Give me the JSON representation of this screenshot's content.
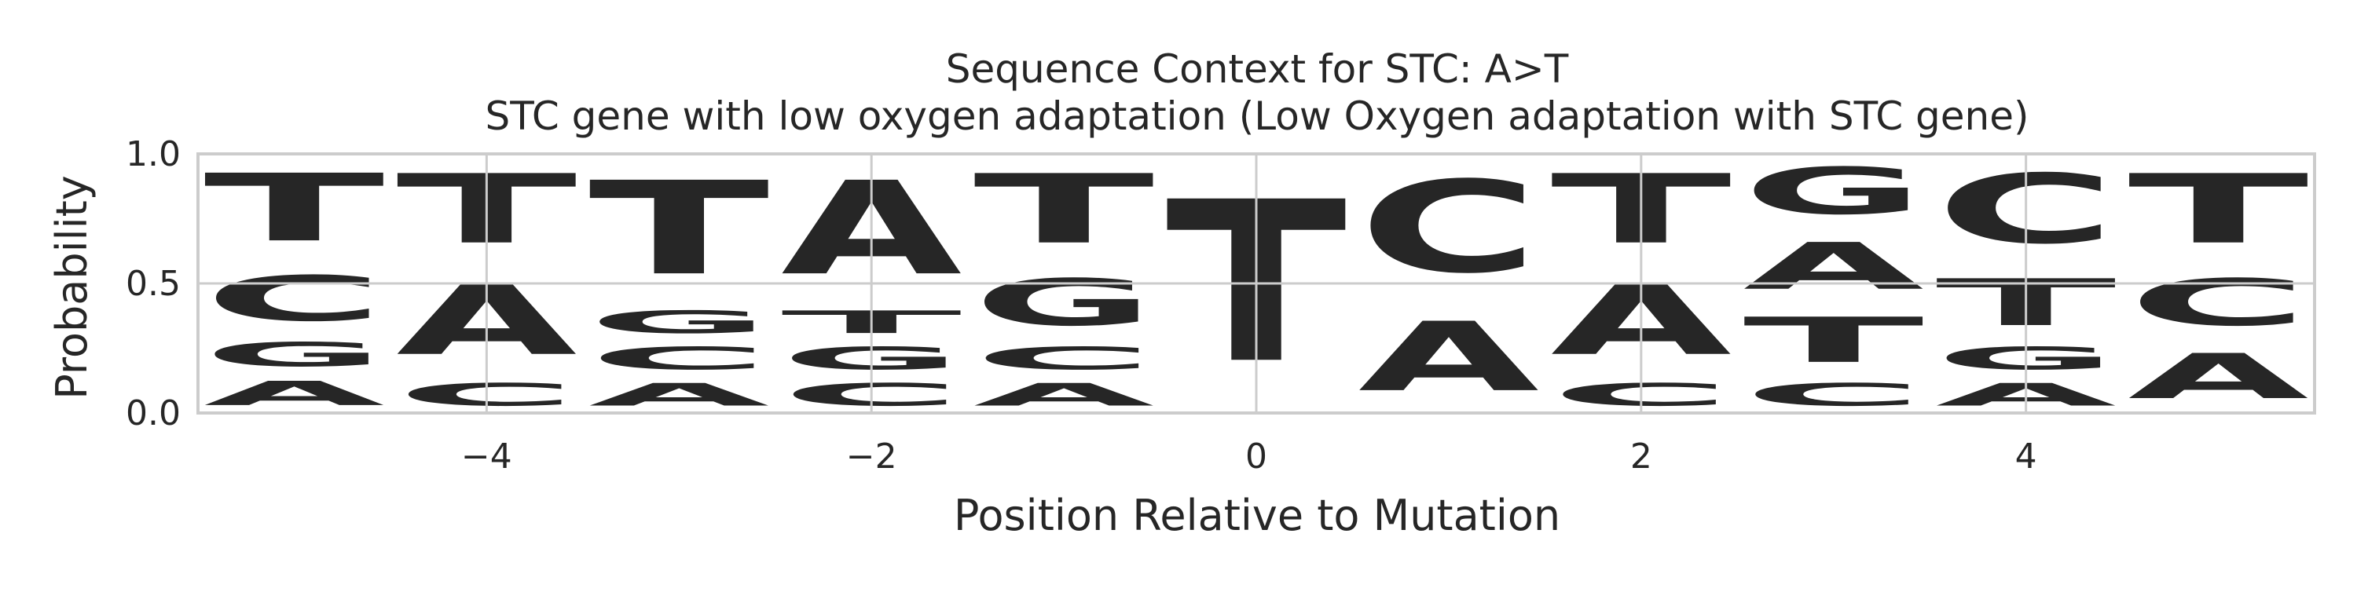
{
  "chart_data": {
    "type": "sequence-logo",
    "title": "Sequence Context for STC: A>T",
    "subtitle": "STC gene with low oxygen adaptation (Low Oxygen adaptation with STC gene)",
    "xlabel": "Position Relative to Mutation",
    "ylabel": "Probability",
    "xlim": [
      -5.5,
      5.5
    ],
    "ylim": [
      0,
      1
    ],
    "xticks": [
      -4,
      -2,
      0,
      2,
      4
    ],
    "xtick_labels": [
      "−4",
      "−2",
      "0",
      "2",
      "4"
    ],
    "yticks": [
      0,
      0.5,
      1
    ],
    "ytick_labels": [
      "0.0",
      "0.5",
      "1.0"
    ],
    "grid": true,
    "colors": {
      "A": "#008000",
      "C": "#0000ff",
      "G": "#ffa500",
      "T": "#ff0000"
    },
    "positions": [
      -5,
      -4,
      -3,
      -2,
      -1,
      0,
      1,
      2,
      3,
      4,
      5
    ],
    "probabilities": [
      {
        "position": -5,
        "A": 0.15,
        "C": 0.28,
        "G": 0.15,
        "T": 0.42
      },
      {
        "position": -4,
        "A": 0.43,
        "C": 0.14,
        "G": 0.0,
        "T": 0.43
      },
      {
        "position": -3,
        "A": 0.14,
        "C": 0.14,
        "G": 0.14,
        "T": 0.58
      },
      {
        "position": -2,
        "A": 0.58,
        "C": 0.14,
        "G": 0.14,
        "T": 0.14
      },
      {
        "position": -1,
        "A": 0.14,
        "C": 0.14,
        "G": 0.29,
        "T": 0.43
      },
      {
        "position": 0,
        "A": 0.0,
        "C": 0.0,
        "G": 0.0,
        "T": 1.0
      },
      {
        "position": 1,
        "A": 0.43,
        "C": 0.57,
        "G": 0.0,
        "T": 0.0
      },
      {
        "position": 2,
        "A": 0.43,
        "C": 0.14,
        "G": 0.0,
        "T": 0.43
      },
      {
        "position": 3,
        "A": 0.29,
        "C": 0.14,
        "G": 0.29,
        "T": 0.28
      },
      {
        "position": 4,
        "A": 0.14,
        "C": 0.43,
        "G": 0.14,
        "T": 0.29
      },
      {
        "position": 5,
        "A": 0.28,
        "C": 0.29,
        "G": 0.0,
        "T": 0.43
      }
    ]
  }
}
